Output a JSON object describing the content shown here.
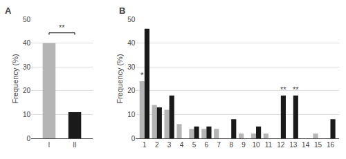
{
  "chart_data": [
    {
      "type": "bar",
      "title": "A",
      "categories": [
        "I",
        "II"
      ],
      "values": [
        40,
        11
      ],
      "colors": [
        "#b5b5b5",
        "#1a1a1a"
      ],
      "ylabel": "Frequency (%)",
      "ylim": [
        0,
        50
      ],
      "yticks": [
        0,
        10,
        20,
        30,
        40,
        50
      ],
      "grid": true,
      "annotations": [
        {
          "text": "**",
          "x": [
            "I",
            "II"
          ]
        }
      ]
    },
    {
      "type": "bar",
      "title": "B",
      "categories": [
        "1",
        "2",
        "3",
        "4",
        "5",
        "6",
        "7",
        "8",
        "9",
        "10",
        "11",
        "12",
        "13",
        "14",
        "15",
        "16"
      ],
      "series": [
        {
          "color": "#b5b5b5",
          "values": [
            24,
            14,
            12,
            6,
            4,
            4,
            4,
            0,
            2,
            2,
            2,
            0,
            0,
            0,
            2,
            0
          ]
        },
        {
          "color": "#1a1a1a",
          "values": [
            46,
            13,
            18,
            0,
            5,
            5,
            0,
            8,
            0,
            5,
            0,
            18,
            18,
            0,
            0,
            8
          ]
        }
      ],
      "ylabel": "Frequency (%)",
      "ylim": [
        0,
        50
      ],
      "yticks": [
        0,
        10,
        20,
        30,
        40,
        50
      ],
      "grid": true,
      "annotations": [
        {
          "text": "*",
          "x": "1",
          "series": 0
        },
        {
          "text": "**",
          "x": "12",
          "series": 1
        },
        {
          "text": "**",
          "x": "13",
          "series": 1
        }
      ]
    }
  ]
}
